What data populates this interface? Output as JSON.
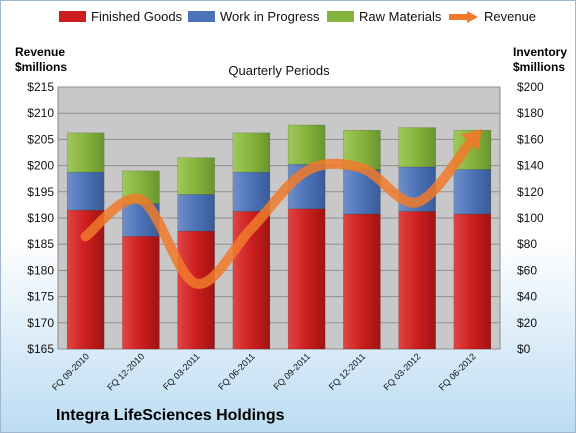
{
  "company_name": "Integra LifeSciences Holdings",
  "colors": {
    "finished_goods": "#cc1e1e",
    "work_in_progress": "#4c72b8",
    "raw_materials": "#86b33c",
    "revenue": "#f07a2a",
    "plot_background": "#c8c8c8"
  },
  "chart_data": {
    "type": "bar",
    "stacked": true,
    "title": "Quarterly Periods",
    "xlabel": "",
    "categories": [
      "FQ 09-2010",
      "FQ 12-2010",
      "FQ 03-2011",
      "FQ 06-2011",
      "FQ 09-2011",
      "FQ 12-2011",
      "FQ 03-2012",
      "FQ 06-2012"
    ],
    "series": [
      {
        "name": "Finished Goods",
        "axis": "right",
        "values": [
          106,
          86,
          90,
          105,
          107,
          103,
          105,
          103
        ]
      },
      {
        "name": "Work in Progress",
        "axis": "right",
        "values": [
          29,
          25,
          28,
          30,
          34,
          34,
          34,
          34
        ]
      },
      {
        "name": "Raw Materials",
        "axis": "right",
        "values": [
          30,
          25,
          28,
          30,
          30,
          30,
          30,
          30
        ]
      },
      {
        "name": "Revenue",
        "axis": "left",
        "type": "line",
        "values": [
          186.5,
          193.5,
          177.5,
          188,
          199,
          199.5,
          193,
          205
        ]
      }
    ],
    "y_left": {
      "label": "Revenue $millions",
      "label_lines": [
        "Revenue",
        "$millions"
      ],
      "range": [
        165,
        215
      ],
      "ticks": [
        165,
        170,
        175,
        180,
        185,
        190,
        195,
        200,
        205,
        210,
        215
      ],
      "tick_labels": [
        "$165",
        "$170",
        "$175",
        "$180",
        "$185",
        "$190",
        "$195",
        "$200",
        "$205",
        "$210",
        "$215"
      ]
    },
    "y_right": {
      "label": "Inventory $millions",
      "label_lines": [
        "Inventory",
        "$millions"
      ],
      "range": [
        0,
        200
      ],
      "ticks": [
        0,
        20,
        40,
        60,
        80,
        100,
        120,
        140,
        160,
        180,
        200
      ],
      "tick_labels": [
        "$0",
        "$20",
        "$40",
        "$60",
        "$80",
        "$100",
        "$120",
        "$140",
        "$160",
        "$180",
        "$200"
      ]
    },
    "grid": true,
    "legend_position": "top"
  }
}
